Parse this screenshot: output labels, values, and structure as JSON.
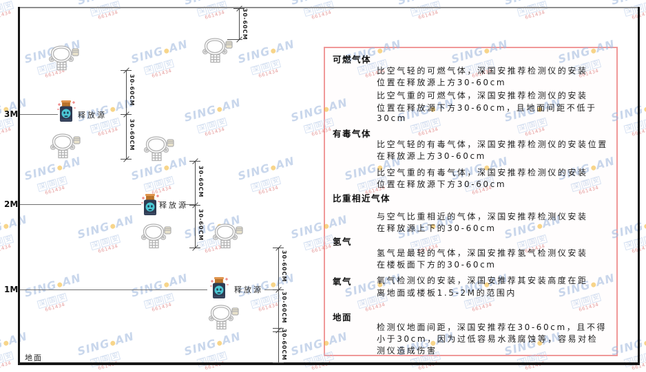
{
  "watermark": {
    "brand_first": "SING",
    "brand_second": "AN",
    "brand_cn": "深国安",
    "code": "661434"
  },
  "diagram": {
    "height_labels": [
      "3M",
      "2M",
      "1M"
    ],
    "ground_label": "地面",
    "source_label": "释放源",
    "dim_label": "30-60CM"
  },
  "panel": {
    "border_color": "#f09898",
    "sections": [
      {
        "heading": "可燃气体",
        "lines": [
          "比空气轻的可燃气体，深国安推荐检测仪的安装",
          "位置在释放源上方30-60cm",
          "比空气重的可燃气体，深国安推荐检测仪的安装",
          "位置在释放源下方30-60cm，且地面间距不低于",
          "30cm"
        ]
      },
      {
        "heading": "有毒气体",
        "lines": [
          "比空气轻的有毒气体，深国安推荐检测仪的安装位置",
          "在释放源上方30-60cm",
          "比空气重的有毒气体，深国安推荐检测仪的安装",
          "位置在释放源下方30-60cm"
        ]
      },
      {
        "heading": "比重相近气体",
        "lines": [
          "与空气比重相近的气体，深国安推荐检测仪安装",
          "在释放源上下的30-60cm"
        ]
      },
      {
        "heading": "氢气",
        "lines": [
          "氢气是最轻的气体，深国安推荐氢气检测仪安装",
          "在楼板面下方的30-60cm"
        ]
      },
      {
        "heading": "氧气",
        "lines": [
          "氧气检测仪的安装，深国安推荐其安装高度在距",
          "离地面或楼板1.5-2M的范围内"
        ]
      },
      {
        "heading": "地面",
        "lines": [
          "检测仪地面间距，深国安推荐在30-60cm，且不得",
          "小于30cm，因为过低容易水溅腐蚀等，容易对检",
          "测仪造成伤害"
        ]
      }
    ]
  }
}
